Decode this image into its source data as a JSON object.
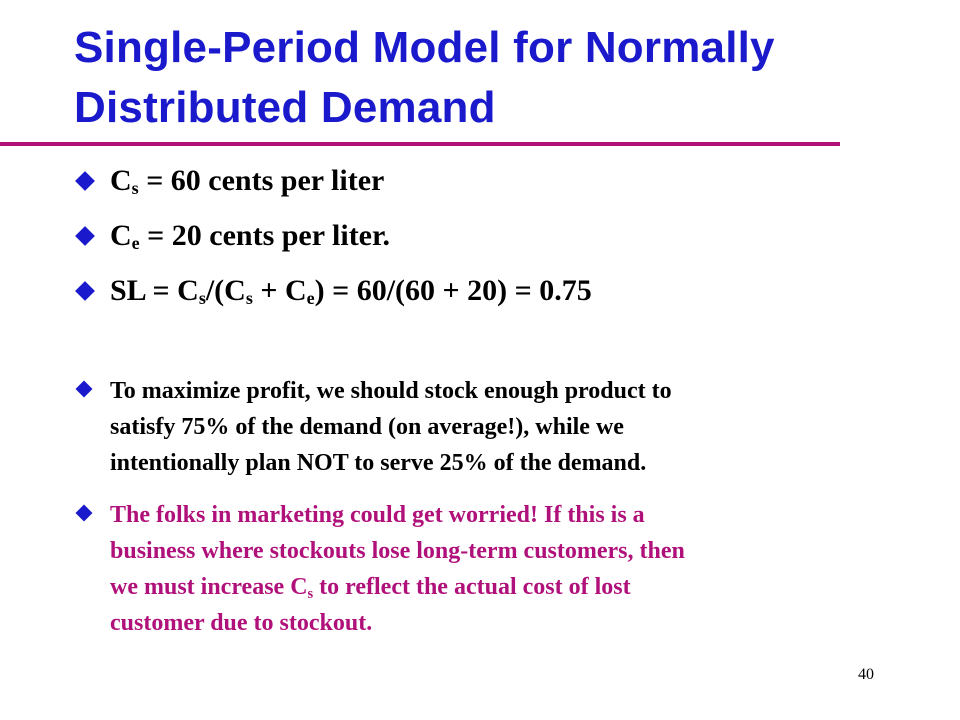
{
  "title_line1": "Single-Period Model for Normally",
  "title_line2": "Distributed Demand",
  "b1": {
    "c": "C",
    "sub": "s",
    "rest": " = 60 cents per liter"
  },
  "b2": {
    "c": "C",
    "sub": "e",
    "rest": " = 20 cents per liter."
  },
  "b3": {
    "p1": "SL = C",
    "s1": "s",
    "p2": "/(C",
    "s2": "s",
    "p3": " + C",
    "s3": "e",
    "p4": ") = 60/(60 + 20) = 0.75"
  },
  "b4": {
    "line1": "To maximize profit, we should stock enough product to",
    "line2": "satisfy 75% of the demand (on average!), while we",
    "line3": "intentionally plan NOT to serve 25% of the demand."
  },
  "b5": {
    "line1": "The folks in marketing could get worried!  If this is a",
    "line2": "business where stockouts lose long-term customers, then",
    "line3a": "we must increase C",
    "line3sub": "s",
    "line3b": " to reflect the actual cost of lost",
    "line4": "customer due to stockout."
  },
  "page_number": "40",
  "colors": {
    "title": "#1a1acc",
    "rule": "#b0107a",
    "bullet": "#1a1acc",
    "emphasis": "#b0107a"
  }
}
